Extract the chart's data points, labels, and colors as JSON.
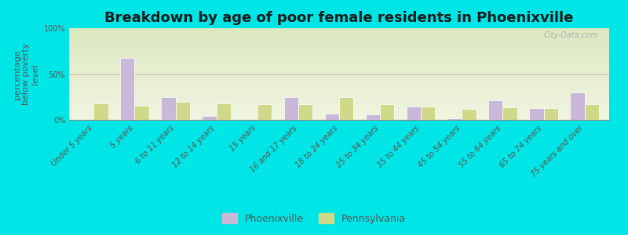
{
  "title": "Breakdown by age of poor female residents in Phoenixville",
  "ylabel": "percentage\nbelow poverty\nlevel",
  "categories": [
    "Under 5 years",
    "5 years",
    "6 to 11 years",
    "12 to 14 years",
    "15 years",
    "16 and 17 years",
    "18 to 24 years",
    "25 to 34 years",
    "35 to 44 years",
    "45 to 54 years",
    "55 to 64 years",
    "65 to 74 years",
    "75 years and over"
  ],
  "phoenixville": [
    0,
    68,
    25,
    5,
    0,
    25,
    7,
    6,
    15,
    2,
    22,
    13,
    30
  ],
  "pennsylvania": [
    18,
    16,
    20,
    18,
    17,
    17,
    25,
    17,
    15,
    12,
    14,
    13,
    17
  ],
  "phoenixville_color": "#c9b8d8",
  "pennsylvania_color": "#d0d98a",
  "background_top": "#dce8c0",
  "background_bottom": "#f0f5e0",
  "outer_bg": "#00e5e5",
  "bar_width": 0.35,
  "ylim": [
    0,
    100
  ],
  "yticks": [
    0,
    50,
    100
  ],
  "ytick_labels": [
    "0%",
    "50%",
    "100%"
  ],
  "title_fontsize": 13,
  "axis_label_fontsize": 8,
  "tick_fontsize": 7,
  "legend_labels": [
    "Phoenixville",
    "Pennsylvania"
  ],
  "watermark": "City-Data.com"
}
